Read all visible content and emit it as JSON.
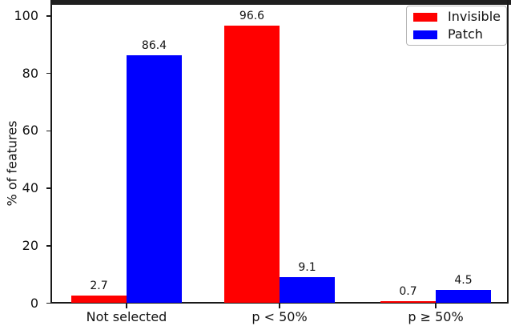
{
  "chart_data": {
    "type": "bar",
    "title": "",
    "xlabel": "",
    "ylabel": "% of features",
    "categories": [
      "Not selected",
      "p < 50%",
      "p ≥ 50%"
    ],
    "series": [
      {
        "name": "Invisible",
        "color": "#ff0000",
        "values": [
          2.7,
          96.6,
          0.7
        ]
      },
      {
        "name": "Patch",
        "color": "#0000ff",
        "values": [
          86.4,
          9.1,
          4.5
        ]
      }
    ],
    "value_labels": [
      "2.7",
      "86.4",
      "96.6",
      "9.1",
      "0.7",
      "4.5"
    ],
    "yticks": [
      0,
      20,
      40,
      60,
      80,
      100
    ],
    "ylim": [
      0,
      100
    ],
    "grid": false,
    "legend_position": "upper right",
    "spine_color": "#1a1a1a",
    "background_color": "#ffffff"
  }
}
